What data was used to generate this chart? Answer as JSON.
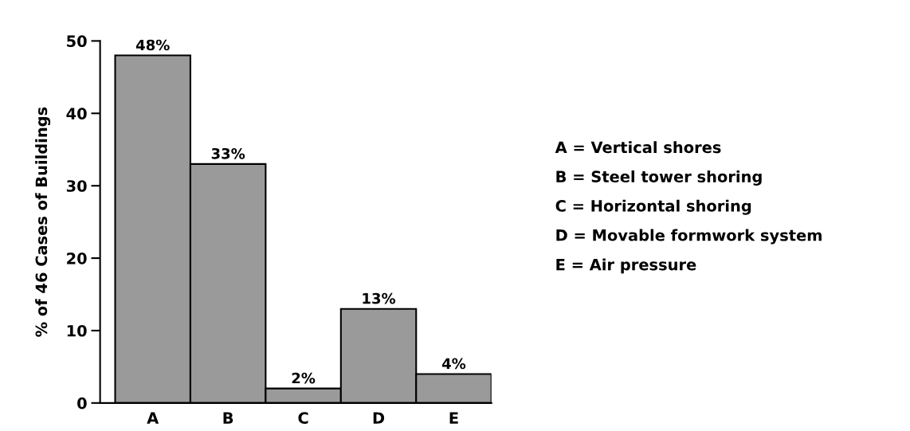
{
  "chart_data": {
    "type": "bar",
    "ylabel": "% of 46 Cases of Buildings",
    "categories": [
      "A",
      "B",
      "C",
      "D",
      "E"
    ],
    "values": [
      48,
      33,
      2,
      13,
      4
    ],
    "value_labels": [
      "48%",
      "33%",
      "2%",
      "13%",
      "4%"
    ],
    "color": "#9a9a9a",
    "ylim": [
      0,
      50
    ],
    "yticks": [
      0,
      10,
      20,
      30,
      40,
      50
    ],
    "grid": false,
    "annotations": [
      "A = Vertical shores",
      "B = Steel tower shoring",
      "C = Horizontal shoring",
      "D = Movable formwork system",
      "E = Air pressure"
    ]
  }
}
